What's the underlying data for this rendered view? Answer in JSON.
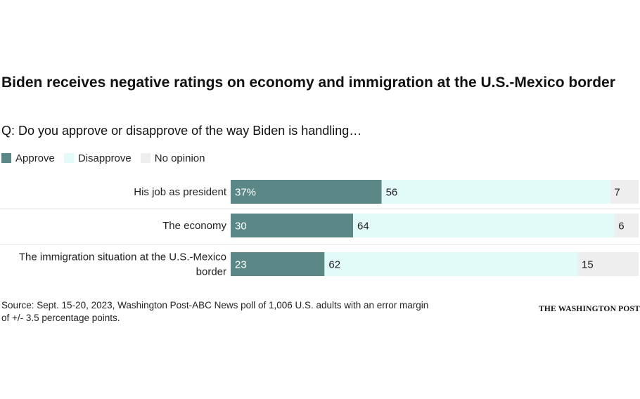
{
  "chart_data": {
    "type": "bar",
    "stacked": true,
    "orientation": "horizontal",
    "title": "Biden receives negative ratings on economy and immigration at the U.S.-Mexico border",
    "subtitle": "Q: Do you approve or disapprove of the way Biden is handling…",
    "categories": [
      [
        "His job as president"
      ],
      [
        "The economy"
      ],
      [
        "The immigration situation at the U.S.-Mexico",
        "border"
      ]
    ],
    "series": [
      {
        "name": "Approve",
        "values": [
          37,
          30,
          23
        ],
        "color": "#5b8787"
      },
      {
        "name": "Disapprove",
        "values": [
          56,
          64,
          62
        ],
        "color": "#e3fbf8"
      },
      {
        "name": "No opinion",
        "values": [
          7,
          6,
          15
        ],
        "color": "#eeeeee"
      }
    ],
    "value_labels": [
      [
        "37%",
        "56",
        "7"
      ],
      [
        "30",
        "64",
        "6"
      ],
      [
        "23",
        "62",
        "15"
      ]
    ],
    "xlim": [
      0,
      100
    ],
    "legend_position": "top-left",
    "grid": false
  },
  "source": "Source: Sept. 15-20, 2023, Washington Post-ABC News poll of 1,006 U.S. adults with an error margin of +/- 3.5 percentage points.",
  "credit": "THE WASHINGTON POST"
}
